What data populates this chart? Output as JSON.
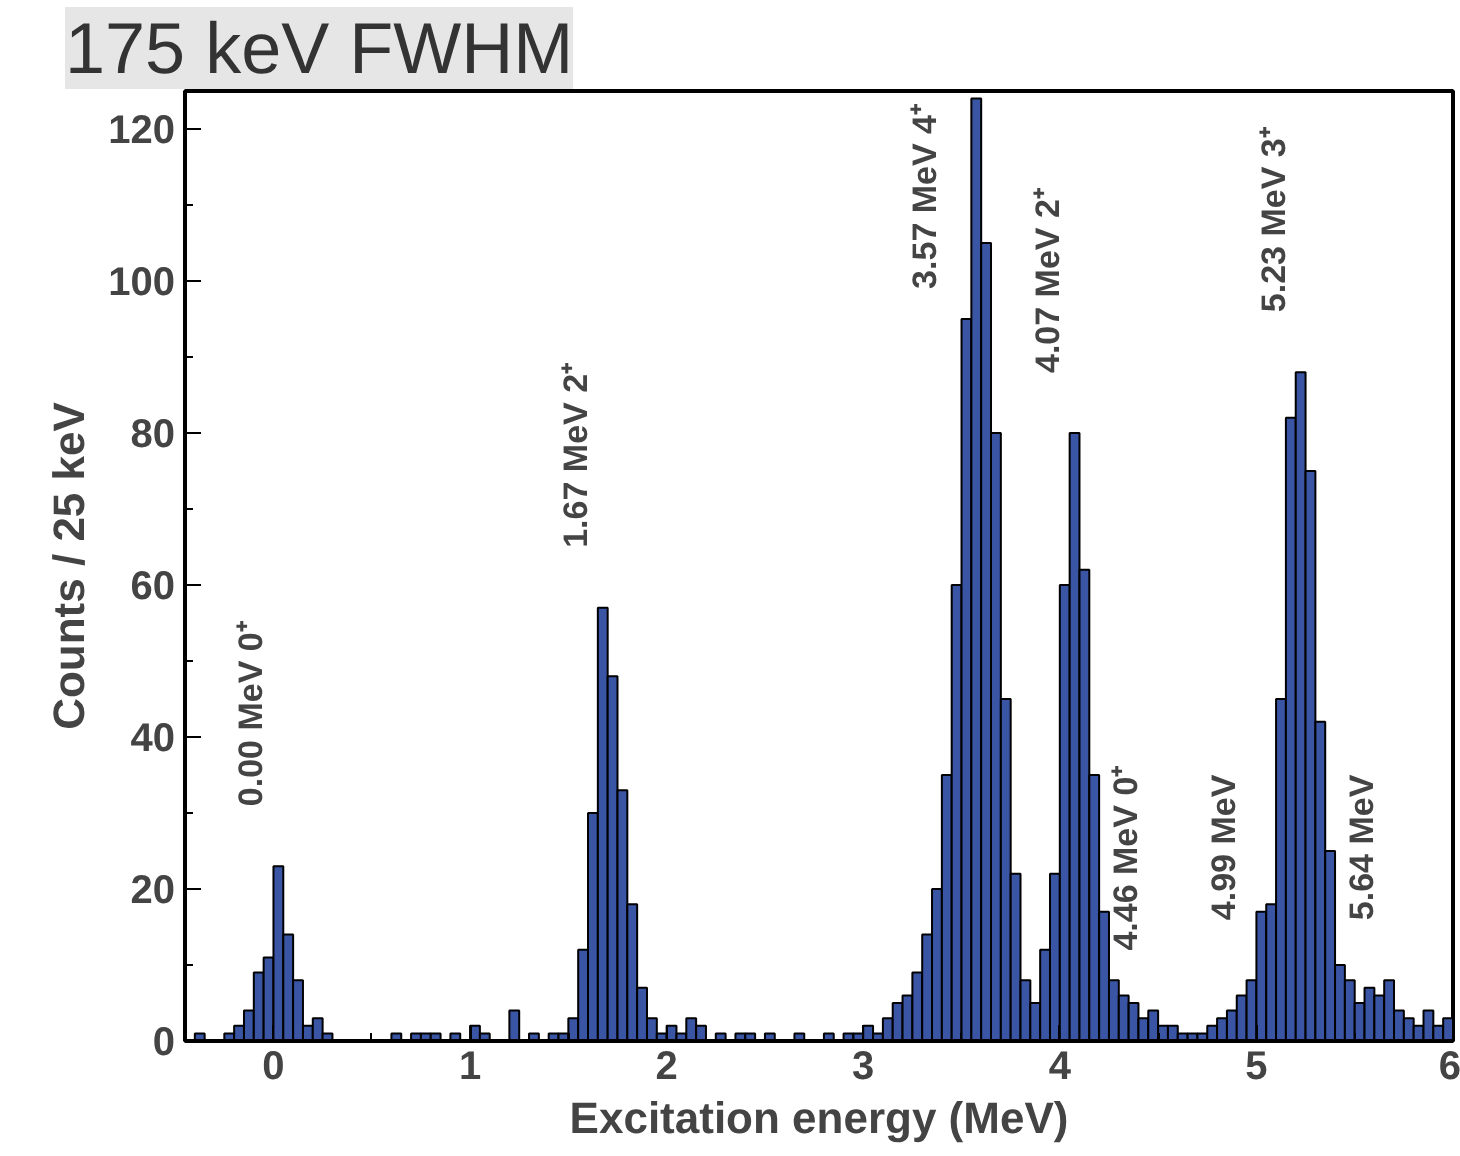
{
  "chart_data": {
    "type": "histogram",
    "xlabel": "Excitation energy (MeV)",
    "ylabel": "Counts / 25 keV",
    "bins": [
      -0.45,
      -0.4,
      -0.35,
      -0.3,
      -0.25,
      -0.2,
      -0.15,
      -0.1,
      -0.05,
      0,
      0.05,
      0.1,
      0.15,
      0.2,
      0.25,
      0.3,
      0.35,
      0.4,
      0.45,
      0.5,
      0.55,
      0.6,
      0.65,
      0.7,
      0.75,
      0.8,
      0.85,
      0.9,
      0.95,
      1.0,
      1.05,
      1.1,
      1.15,
      1.2,
      1.25,
      1.3,
      1.35,
      1.4,
      1.45,
      1.5,
      1.55,
      1.6,
      1.65,
      1.7,
      1.75,
      1.8,
      1.85,
      1.9,
      1.95,
      2.0,
      2.05,
      2.1,
      2.15,
      2.2,
      2.25,
      2.3,
      2.35,
      2.4,
      2.45,
      2.5,
      2.55,
      2.6,
      2.65,
      2.7,
      2.75,
      2.8,
      2.85,
      2.9,
      2.95,
      3.0,
      3.05,
      3.1,
      3.15,
      3.2,
      3.25,
      3.3,
      3.35,
      3.4,
      3.45,
      3.5,
      3.55,
      3.6,
      3.65,
      3.7,
      3.75,
      3.8,
      3.85,
      3.9,
      3.95,
      4.0,
      4.05,
      4.1,
      4.15,
      4.2,
      4.25,
      4.3,
      4.35,
      4.4,
      4.45,
      4.5,
      4.55,
      4.6,
      4.65,
      4.7,
      4.75,
      4.8,
      4.85,
      4.9,
      4.95,
      5.0,
      5.05,
      5.1,
      5.15,
      5.2,
      5.25,
      5.3,
      5.35,
      5.4,
      5.45,
      5.5,
      5.55,
      5.6,
      5.65,
      5.7,
      5.75,
      5.8,
      5.85,
      5.9,
      5.95,
      6.0
    ],
    "values": [
      0,
      1,
      0,
      0,
      1,
      2,
      4,
      9,
      11,
      23,
      14,
      8,
      2,
      3,
      1,
      0,
      0,
      0,
      0,
      0,
      0,
      1,
      0,
      1,
      1,
      1,
      0,
      1,
      0,
      2,
      1,
      0,
      0,
      4,
      0,
      1,
      0,
      1,
      1,
      3,
      12,
      30,
      57,
      48,
      33,
      18,
      7,
      3,
      1,
      2,
      1,
      3,
      2,
      0,
      1,
      0,
      1,
      1,
      0,
      1,
      0,
      0,
      1,
      0,
      0,
      1,
      0,
      1,
      1,
      2,
      1,
      3,
      5,
      6,
      9,
      14,
      20,
      35,
      60,
      95,
      124,
      105,
      80,
      45,
      22,
      8,
      5,
      12,
      22,
      60,
      80,
      62,
      35,
      17,
      8,
      6,
      5,
      3,
      4,
      2,
      2,
      1,
      1,
      1,
      2,
      3,
      4,
      6,
      8,
      17,
      18,
      45,
      82,
      88,
      75,
      42,
      25,
      10,
      8,
      5,
      7,
      6,
      8,
      4,
      3,
      2,
      4,
      2,
      3
    ],
    "color": "#3a55a4",
    "xlim": [
      -0.45,
      6.0
    ],
    "ylim": [
      0,
      125
    ],
    "xticks": [
      0,
      1,
      2,
      3,
      4,
      5,
      6
    ],
    "yticks": [
      0,
      20,
      40,
      60,
      80,
      100,
      120
    ],
    "grid": false,
    "annotations": [
      "175 keV FWHM",
      {
        "text": "0.00 MeV 0⁺",
        "x": 0.025,
        "y": 23
      },
      {
        "text": "1.67 MeV 2⁺",
        "x": 1.675,
        "y": 57
      },
      {
        "text": "3.57 MeV 4⁺",
        "x": 3.575,
        "y": 124
      },
      {
        "text": "4.07 MeV 2⁺",
        "x": 4.075,
        "y": 80
      },
      {
        "text": "4.46 MeV 0⁺",
        "x": 4.475,
        "y": 4
      },
      {
        "text": "4.99 MeV",
        "x": 4.975,
        "y": 8
      },
      {
        "text": "5.23 MeV 3⁺",
        "x": 5.225,
        "y": 88
      },
      {
        "text": "5.64 MeV",
        "x": 5.675,
        "y": 8
      }
    ]
  }
}
